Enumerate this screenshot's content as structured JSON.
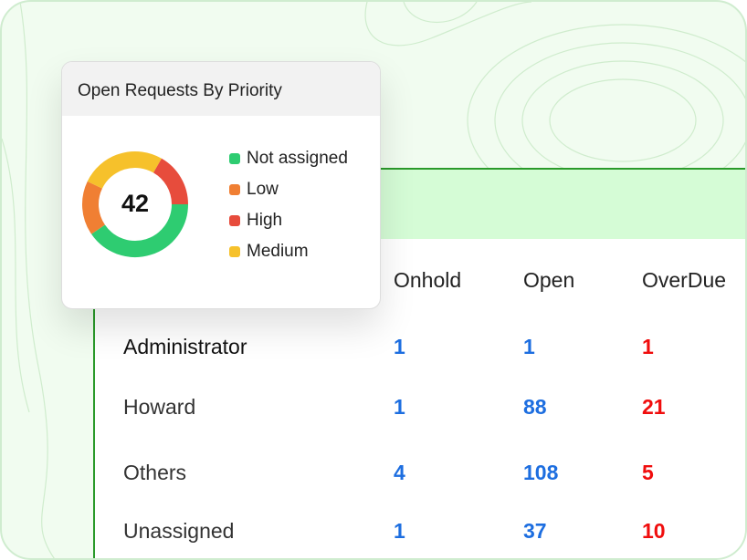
{
  "card": {
    "title": "Open Requests By Priority",
    "total": "42",
    "legend": [
      {
        "label": "Not assigned",
        "color": "#2ecc71",
        "value": 17
      },
      {
        "label": "Low",
        "color": "#f07f33",
        "value": 7
      },
      {
        "label": "High",
        "color": "#e74c3c",
        "value": 7
      },
      {
        "label": "Medium",
        "color": "#f6c12b",
        "value": 11
      }
    ]
  },
  "table": {
    "columns": [
      "Onhold",
      "Open",
      "OverDue"
    ],
    "rows": [
      {
        "name": "Administrator",
        "onhold": "1",
        "open": "1",
        "overdue": "1"
      },
      {
        "name": "Howard",
        "onhold": "1",
        "open": "88",
        "overdue": "21"
      },
      {
        "name": "Others",
        "onhold": "4",
        "open": "108",
        "overdue": "5"
      },
      {
        "name": "Unassigned",
        "onhold": "1",
        "open": "37",
        "overdue": "10"
      }
    ]
  }
}
